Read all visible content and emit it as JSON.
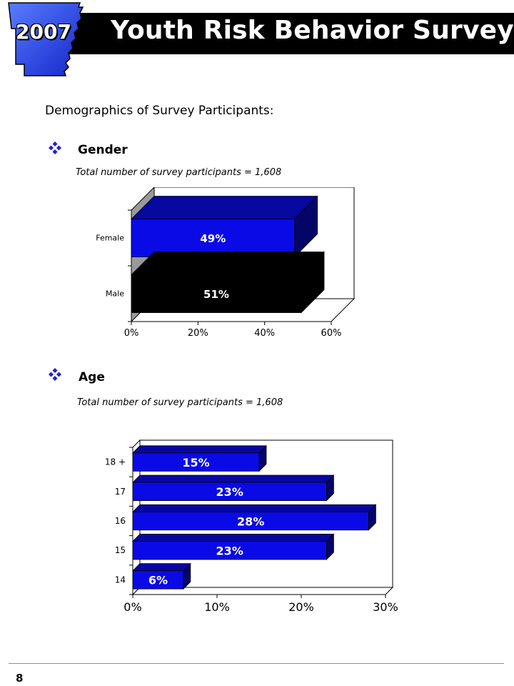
{
  "header": {
    "year": "2007",
    "title": "Youth Risk Behavior Survey"
  },
  "intro": "Demographics of Survey Participants:",
  "sections": [
    {
      "heading": "Gender",
      "note": "Total number of survey participants = 1,608"
    },
    {
      "heading": "Age",
      "note": "Total number of survey participants = 1,608"
    }
  ],
  "chart_data": [
    {
      "type": "bar",
      "orientation": "horizontal",
      "categories": [
        "Female",
        "Male"
      ],
      "values": [
        49,
        51
      ],
      "data_labels": [
        "49%",
        "51%"
      ],
      "bar_colors": [
        "#0a0ae6",
        "#000000"
      ],
      "xlim": [
        0,
        60
      ],
      "xticks": [
        "0%",
        "20%",
        "40%",
        "60%"
      ],
      "grid": false
    },
    {
      "type": "bar",
      "orientation": "horizontal",
      "categories": [
        "18 +",
        "17",
        "16",
        "15",
        "14"
      ],
      "values": [
        15,
        23,
        28,
        23,
        6
      ],
      "data_labels": [
        "15%",
        "23%",
        "28%",
        "23%",
        "6%"
      ],
      "bar_colors": [
        "#0a0ae6"
      ],
      "xlim": [
        0,
        30
      ],
      "xticks": [
        "0%",
        "10%",
        "20%",
        "30%"
      ],
      "grid": false
    }
  ],
  "footer": {
    "page_number": "8"
  }
}
